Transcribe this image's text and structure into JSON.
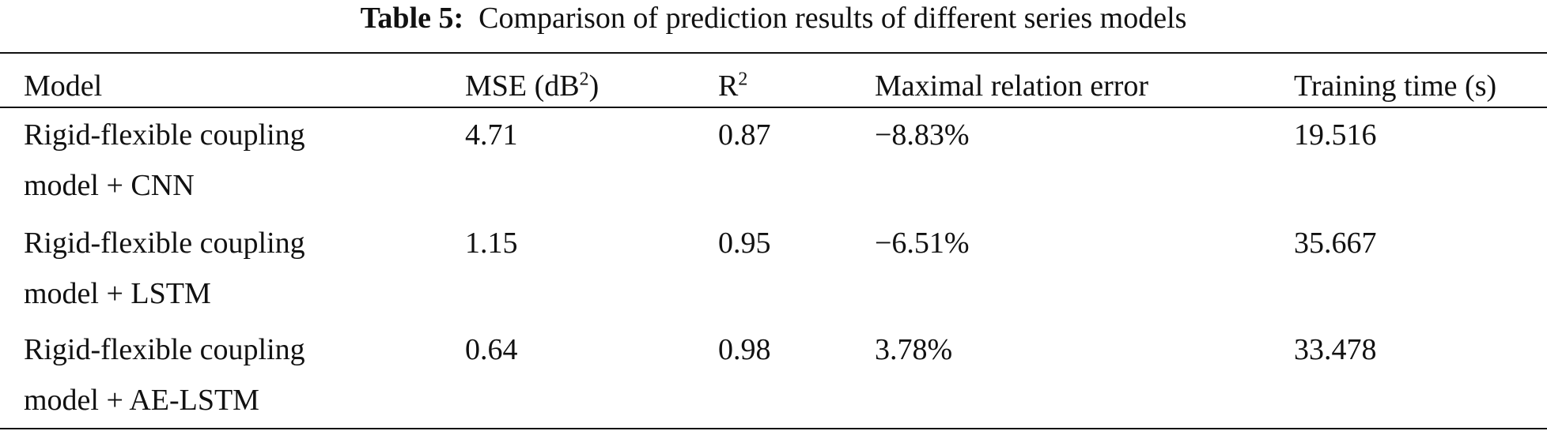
{
  "caption": {
    "label": "Table 5:",
    "text": "Comparison of prediction results of different series models"
  },
  "table": {
    "headers": {
      "model": "Model",
      "mse_prefix": "MSE (dB",
      "mse_sup": "2",
      "mse_suffix": ")",
      "r2_base": "R",
      "r2_sup": "2",
      "max_error": "Maximal relation error",
      "training_time": "Training time (s)"
    },
    "rows": [
      {
        "model_line1": "Rigid-flexible coupling",
        "model_line2": "model + CNN",
        "mse": "4.71",
        "r2": "0.87",
        "max_error": "−8.83%",
        "training_time": "19.516"
      },
      {
        "model_line1": "Rigid-flexible coupling",
        "model_line2": "model + LSTM",
        "mse": "1.15",
        "r2": "0.95",
        "max_error": "−6.51%",
        "training_time": "35.667"
      },
      {
        "model_line1": "Rigid-flexible coupling",
        "model_line2": "model + AE-LSTM",
        "mse": "0.64",
        "r2": "0.98",
        "max_error": "3.78%",
        "training_time": "33.478"
      }
    ]
  }
}
